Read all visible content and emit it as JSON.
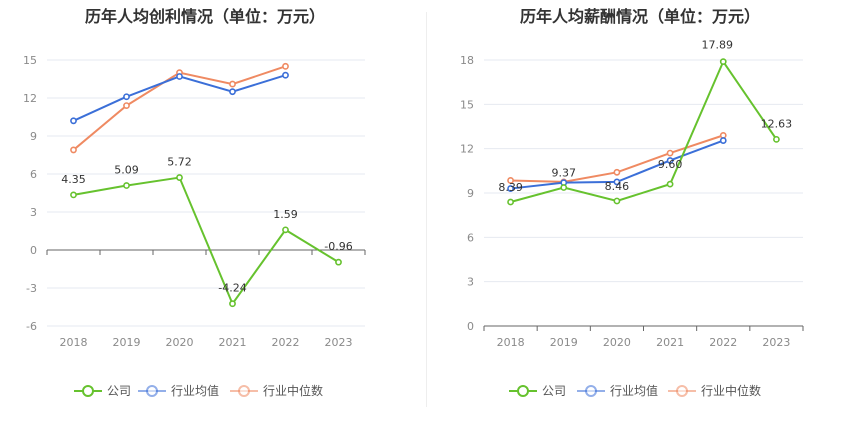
{
  "chart_data": [
    {
      "type": "line",
      "title": "历年人均创利情况（单位：万元）",
      "categories": [
        "2018",
        "2019",
        "2020",
        "2021",
        "2022",
        "2023"
      ],
      "ylim": [
        -6,
        15
      ],
      "yticks": [
        "15",
        "12",
        "9",
        "6",
        "3",
        "0",
        "-3",
        "-6"
      ],
      "grid": true,
      "legend_position": "bottom",
      "series": [
        {
          "name": "公司",
          "color": "#66c22e",
          "values": [
            4.35,
            5.09,
            5.72,
            -4.24,
            1.59,
            -0.96
          ],
          "labels": [
            "4.35",
            "5.09",
            "5.72",
            "-4.24",
            "1.59",
            "-0.96"
          ]
        },
        {
          "name": "行业均值",
          "color": "#3b6fd8",
          "values": [
            10.2,
            12.1,
            13.7,
            12.5,
            13.8,
            null
          ],
          "labels": []
        },
        {
          "name": "行业中位数",
          "color": "#ef8a62",
          "values": [
            7.9,
            11.4,
            14.0,
            13.1,
            14.5,
            null
          ],
          "labels": []
        }
      ]
    },
    {
      "type": "line",
      "title": "历年人均薪酬情况（单位：万元）",
      "categories": [
        "2018",
        "2019",
        "2020",
        "2021",
        "2022",
        "2023"
      ],
      "ylim": [
        0,
        18
      ],
      "yticks": [
        "18",
        "15",
        "12",
        "9",
        "6",
        "3",
        "0"
      ],
      "grid": true,
      "legend_position": "bottom",
      "series": [
        {
          "name": "公司",
          "color": "#66c22e",
          "values": [
            8.39,
            9.37,
            8.46,
            9.6,
            17.89,
            12.63
          ],
          "labels": [
            "8.39",
            "9.37",
            "8.46",
            "9.60",
            "17.89",
            "12.63"
          ]
        },
        {
          "name": "行业均值",
          "color": "#3b6fd8",
          "values": [
            9.3,
            9.7,
            9.75,
            11.2,
            12.55,
            null
          ],
          "labels": []
        },
        {
          "name": "行业中位数",
          "color": "#ef8a62",
          "values": [
            9.85,
            9.75,
            10.4,
            11.7,
            12.9,
            null
          ],
          "labels": []
        }
      ]
    }
  ]
}
